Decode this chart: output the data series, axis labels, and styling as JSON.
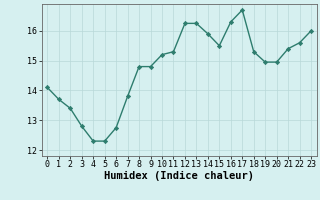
{
  "x": [
    0,
    1,
    2,
    3,
    4,
    5,
    6,
    7,
    8,
    9,
    10,
    11,
    12,
    13,
    14,
    15,
    16,
    17,
    18,
    19,
    20,
    21,
    22,
    23
  ],
  "y": [
    14.1,
    13.7,
    13.4,
    12.8,
    12.3,
    12.3,
    12.75,
    13.8,
    14.8,
    14.8,
    15.2,
    15.3,
    16.25,
    16.25,
    15.9,
    15.5,
    16.3,
    16.7,
    15.3,
    14.95,
    14.95,
    15.4,
    15.6,
    16.0
  ],
  "line_color": "#2e7d6e",
  "marker": "D",
  "marker_size": 2.2,
  "line_width": 1.0,
  "bg_color": "#d6f0f0",
  "grid_color": "#b8d8d8",
  "xlabel": "Humidex (Indice chaleur)",
  "xlabel_fontsize": 7.5,
  "tick_fontsize": 6.0,
  "xlim": [
    -0.5,
    23.5
  ],
  "ylim": [
    11.8,
    16.9
  ],
  "yticks": [
    12,
    13,
    14,
    15,
    16
  ],
  "xticks": [
    0,
    1,
    2,
    3,
    4,
    5,
    6,
    7,
    8,
    9,
    10,
    11,
    12,
    13,
    14,
    15,
    16,
    17,
    18,
    19,
    20,
    21,
    22,
    23
  ]
}
